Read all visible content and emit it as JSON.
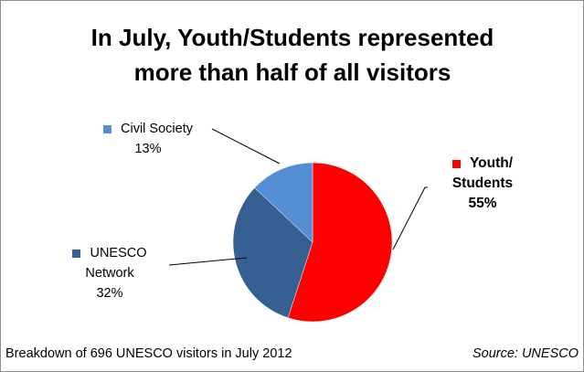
{
  "chart_data": {
    "type": "pie",
    "title_lines": [
      "In July, Youth/Students represented",
      "more than half of all visitors"
    ],
    "slices": [
      {
        "name_lines": [
          "Youth/",
          "Students"
        ],
        "value": 55,
        "label": "55%",
        "color": "#ff0000"
      },
      {
        "name_lines": [
          "UNESCO",
          "Network"
        ],
        "value": 32,
        "label": "32%",
        "color": "#376092"
      },
      {
        "name_lines": [
          "Civil Society"
        ],
        "value": 13,
        "label": "13%",
        "color": "#558ed5"
      }
    ],
    "legend": "data labels with leader lines"
  },
  "footer": {
    "note": "Breakdown of 696 UNESCO visitors in July 2012",
    "source": "Source: UNESCO"
  }
}
